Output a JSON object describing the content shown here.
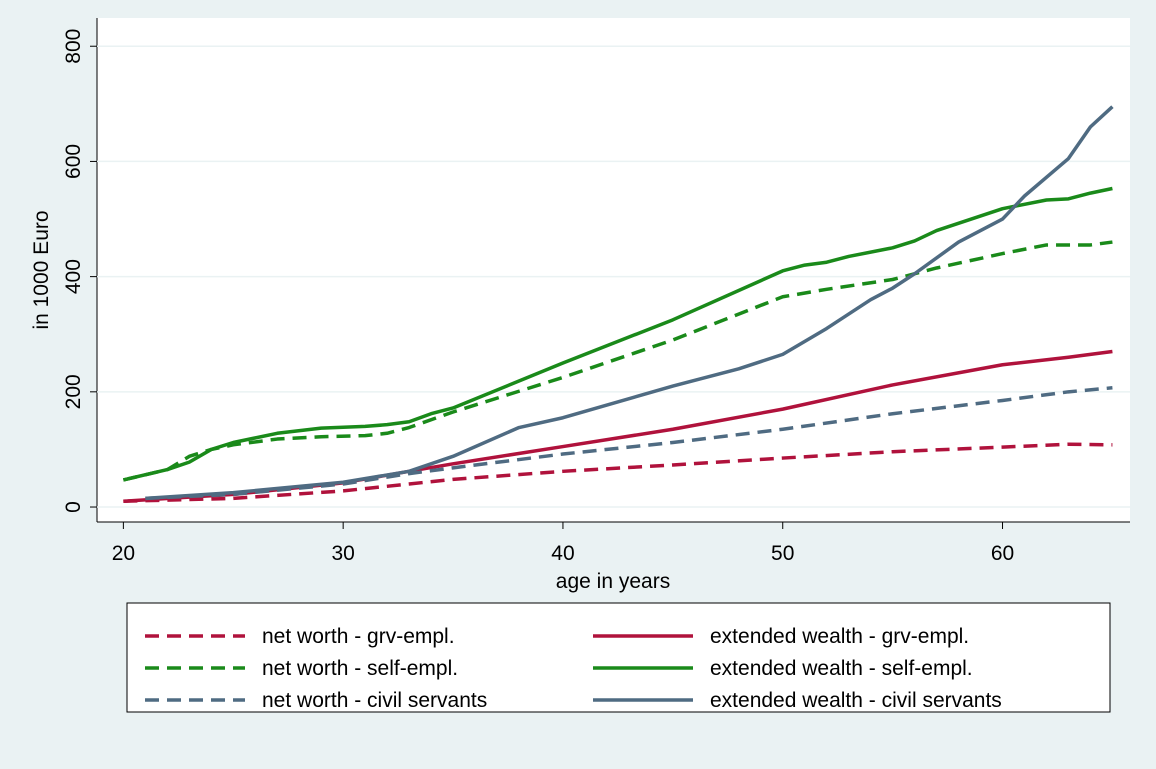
{
  "chart_data": {
    "type": "line",
    "x_label": "age in years",
    "y_label": "in 1000 Euro",
    "xlim": [
      18.8,
      65.8
    ],
    "ylim": [
      -26,
      849
    ],
    "xticks": [
      20,
      30,
      40,
      50,
      60
    ],
    "yticks": [
      0,
      200,
      400,
      600,
      800
    ],
    "grid": true,
    "legend_position": "bottom",
    "series": [
      {
        "name": "net worth - grv-empl.",
        "color": "#b0123c",
        "dashed": true,
        "x": [
          20,
          25,
          30,
          33,
          35,
          40,
          45,
          50,
          55,
          60,
          63,
          65
        ],
        "values": [
          10,
          15,
          28,
          40,
          48,
          62,
          73,
          85,
          96,
          104,
          109,
          108
        ]
      },
      {
        "name": "extended wealth - grv-empl.",
        "color": "#b0123c",
        "dashed": false,
        "x": [
          20,
          25,
          30,
          33,
          35,
          40,
          45,
          50,
          55,
          60,
          63,
          65
        ],
        "values": [
          10,
          22,
          42,
          62,
          75,
          105,
          135,
          170,
          212,
          247,
          260,
          270
        ]
      },
      {
        "name": "net worth - self-empl.",
        "color": "#1a8a1a",
        "dashed": true,
        "x": [
          20,
          22,
          23,
          24,
          25,
          27,
          29,
          31,
          32,
          33,
          35,
          40,
          45,
          50,
          52,
          55,
          57,
          60,
          62,
          64,
          65
        ],
        "values": [
          47,
          65,
          88,
          100,
          108,
          118,
          122,
          124,
          128,
          138,
          165,
          225,
          290,
          365,
          378,
          395,
          415,
          440,
          455,
          455,
          460
        ]
      },
      {
        "name": "extended wealth - self-empl.",
        "color": "#1a8a1a",
        "dashed": false,
        "x": [
          20,
          22,
          23,
          24,
          25,
          27,
          29,
          31,
          32,
          33,
          34,
          35,
          40,
          45,
          50,
          51,
          52,
          53,
          55,
          56,
          57,
          60,
          62,
          63,
          64,
          65
        ],
        "values": [
          47,
          65,
          78,
          100,
          112,
          128,
          137,
          140,
          143,
          148,
          162,
          172,
          250,
          325,
          410,
          420,
          425,
          435,
          450,
          462,
          480,
          518,
          533,
          535,
          545,
          553
        ]
      },
      {
        "name": "net worth - civil servants",
        "color": "#4f6b82",
        "dashed": true,
        "x": [
          21,
          25,
          30,
          33,
          35,
          40,
          45,
          50,
          55,
          60,
          63,
          65
        ],
        "values": [
          15,
          22,
          40,
          58,
          68,
          92,
          112,
          135,
          162,
          185,
          200,
          207
        ]
      },
      {
        "name": "extended wealth - civil servants",
        "color": "#4f6b82",
        "dashed": false,
        "x": [
          21,
          25,
          30,
          33,
          35,
          38,
          40,
          45,
          48,
          50,
          52,
          54,
          55,
          56,
          58,
          60,
          61,
          63,
          64,
          65
        ],
        "values": [
          15,
          25,
          43,
          62,
          88,
          138,
          155,
          210,
          240,
          265,
          310,
          360,
          380,
          405,
          460,
          500,
          540,
          605,
          660,
          695
        ]
      }
    ]
  }
}
